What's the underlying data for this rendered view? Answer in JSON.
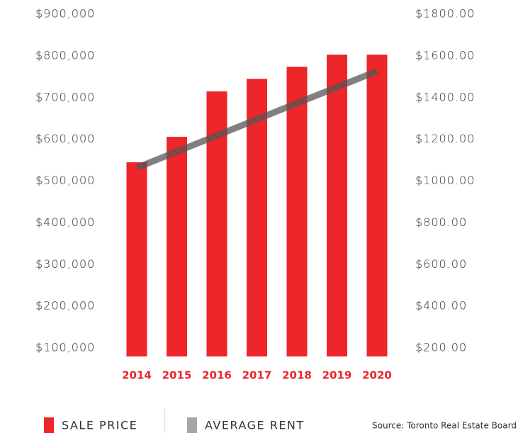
{
  "chart_data": {
    "type": "bar",
    "categories": [
      "2014",
      "2015",
      "2016",
      "2017",
      "2018",
      "2019",
      "2020"
    ],
    "series": [
      {
        "name": "SALE PRICE",
        "color": "#ee2529",
        "values": [
          545000,
          606000,
          715000,
          745000,
          774000,
          803000,
          803000
        ]
      },
      {
        "name": "AVERAGE RENT",
        "color": "#a6a6a8",
        "line_color": "#555555",
        "axis": "y2",
        "type": "line",
        "values": [
          1064,
          1141,
          1218,
          1296,
          1373,
          1450,
          1527
        ]
      }
    ],
    "ylim": [
      100000,
      900000
    ],
    "yticks": [
      {
        "value": 100000,
        "label": "$100,000"
      },
      {
        "value": 200000,
        "label": "$200,000"
      },
      {
        "value": 300000,
        "label": "$300,000"
      },
      {
        "value": 400000,
        "label": "$400,000"
      },
      {
        "value": 500000,
        "label": "$500,000"
      },
      {
        "value": 600000,
        "label": "$600,000"
      },
      {
        "value": 700000,
        "label": "$700,000"
      },
      {
        "value": 800000,
        "label": "$800,000"
      },
      {
        "value": 900000,
        "label": "$900,000"
      }
    ],
    "y2lim": [
      200,
      1800
    ],
    "y2ticks": [
      {
        "value": 200,
        "label": "$200.00"
      },
      {
        "value": 400,
        "label": "$400.00"
      },
      {
        "value": 600,
        "label": "$600.00"
      },
      {
        "value": 800,
        "label": "$800.00"
      },
      {
        "value": 1000,
        "label": "$1000.00"
      },
      {
        "value": 1200,
        "label": "$1200.00"
      },
      {
        "value": 1400,
        "label": "$1400.00"
      },
      {
        "value": 1600,
        "label": "$1600.00"
      },
      {
        "value": 1800,
        "label": "$1800.00"
      }
    ],
    "grid": false,
    "source": "Source: Toronto Real Estate Board"
  }
}
